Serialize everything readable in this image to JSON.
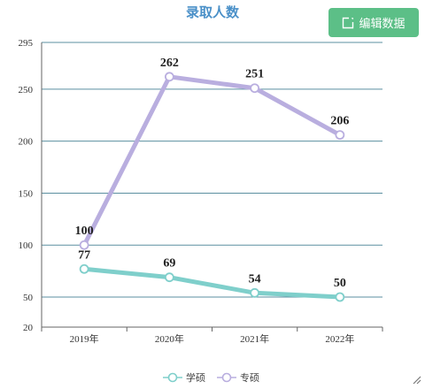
{
  "toolbar": {
    "edit_label": "编辑数据",
    "edit_icon": "edit-icon"
  },
  "chart_data": {
    "type": "line",
    "title": "录取人数",
    "xlabel": "",
    "ylabel": "",
    "categories": [
      "2019年",
      "2020年",
      "2021年",
      "2022年"
    ],
    "ylim": [
      20,
      295
    ],
    "yticks": [
      20,
      50,
      100,
      150,
      200,
      250,
      295
    ],
    "grid": true,
    "legend_position": "bottom",
    "series": [
      {
        "name": "学硕",
        "values": [
          77,
          69,
          54,
          50
        ],
        "color": "#7fcfcb"
      },
      {
        "name": "专硕",
        "values": [
          100,
          262,
          251,
          206
        ],
        "color": "#b9aedf"
      }
    ]
  }
}
